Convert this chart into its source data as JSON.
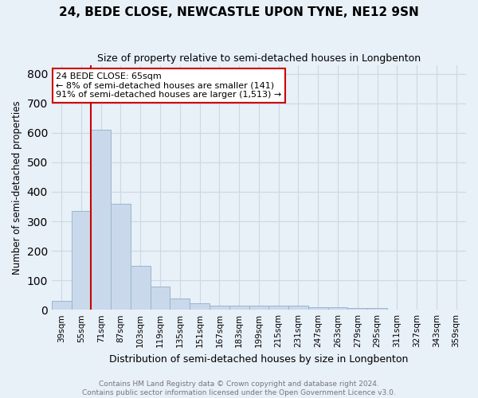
{
  "title_line1": "24, BEDE CLOSE, NEWCASTLE UPON TYNE, NE12 9SN",
  "title_line2": "Size of property relative to semi-detached houses in Longbenton",
  "xlabel": "Distribution of semi-detached houses by size in Longbenton",
  "ylabel": "Number of semi-detached properties",
  "categories": [
    "39sqm",
    "55sqm",
    "71sqm",
    "87sqm",
    "103sqm",
    "119sqm",
    "135sqm",
    "151sqm",
    "167sqm",
    "183sqm",
    "199sqm",
    "215sqm",
    "231sqm",
    "247sqm",
    "263sqm",
    "279sqm",
    "295sqm",
    "311sqm",
    "327sqm",
    "343sqm",
    "359sqm"
  ],
  "values": [
    30,
    335,
    610,
    360,
    150,
    80,
    38,
    22,
    15,
    15,
    15,
    15,
    13,
    8,
    8,
    5,
    5,
    0,
    0,
    0,
    0
  ],
  "bar_color": "#c9d9eb",
  "bar_edge_color": "#9ab5cc",
  "vline_color": "#cc0000",
  "vline_x": 1.5,
  "annotation_text": "24 BEDE CLOSE: 65sqm\n← 8% of semi-detached houses are smaller (141)\n91% of semi-detached houses are larger (1,513) →",
  "annotation_box_color": "#ffffff",
  "annotation_box_edge_color": "#cc0000",
  "ylim": [
    0,
    830
  ],
  "yticks": [
    0,
    100,
    200,
    300,
    400,
    500,
    600,
    700,
    800
  ],
  "footer_line1": "Contains HM Land Registry data © Crown copyright and database right 2024.",
  "footer_line2": "Contains public sector information licensed under the Open Government Licence v3.0.",
  "grid_color": "#ccd8e4",
  "background_color": "#e8f0f8"
}
